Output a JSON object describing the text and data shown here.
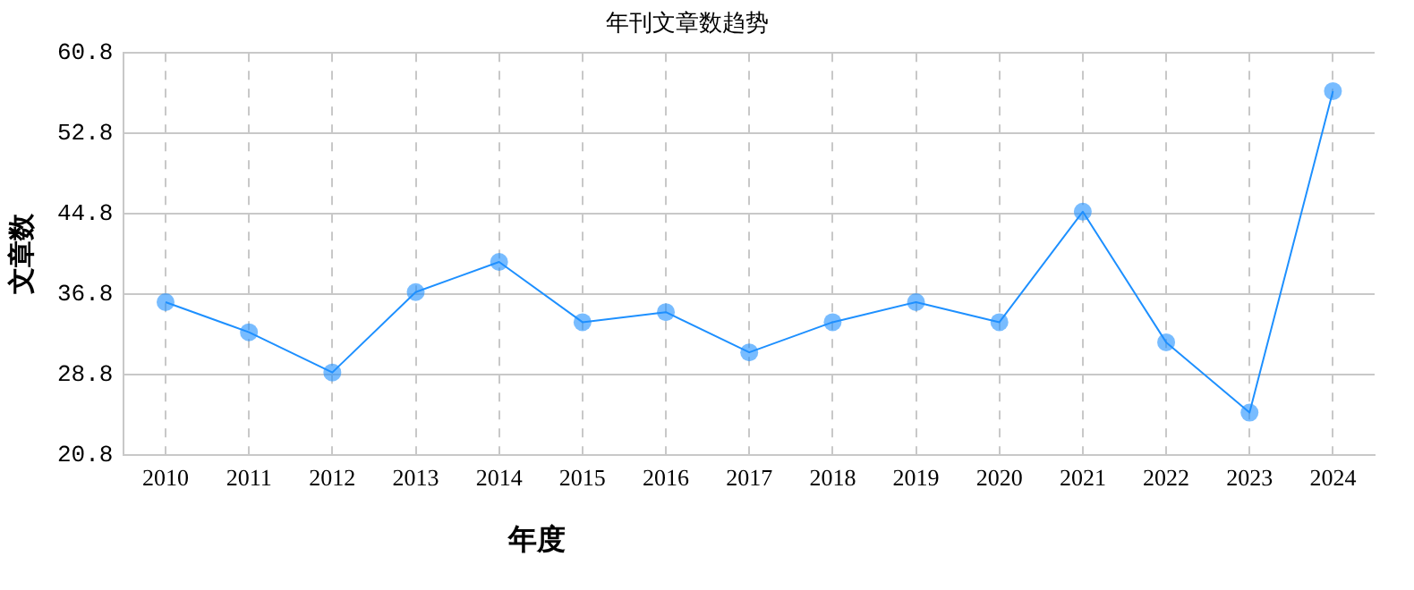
{
  "chart_data": {
    "type": "line",
    "title": "年刊文章数趋势",
    "xlabel": "年度",
    "ylabel": "文章数",
    "categories": [
      "2010",
      "2011",
      "2012",
      "2013",
      "2014",
      "2015",
      "2016",
      "2017",
      "2018",
      "2019",
      "2020",
      "2021",
      "2022",
      "2023",
      "2024"
    ],
    "series": [
      {
        "color": "#1e90ff",
        "values": [
          36,
          33,
          29,
          37,
          40,
          34,
          35,
          31,
          34,
          36,
          34,
          45,
          32,
          25,
          57
        ]
      }
    ],
    "ylim": [
      20.8,
      60.8
    ],
    "yticks": [
      20.8,
      28.8,
      36.8,
      44.8,
      52.8,
      60.8
    ],
    "grid": true,
    "legend": false,
    "marker": "circle",
    "line_style": "solid"
  }
}
